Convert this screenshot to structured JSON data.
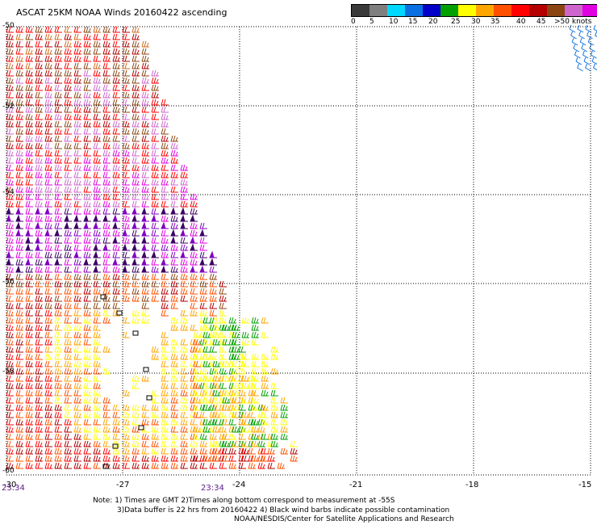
{
  "title": "ASCAT 25KM NOAA Winds 20160422 ascending",
  "legend": {
    "labels": [
      "0",
      "5",
      "10",
      "15",
      "20",
      "25",
      "30",
      "35",
      "40",
      "45",
      ">50 knots"
    ],
    "colors": [
      "#3a3a3a",
      "#7f7f7f",
      "#00d8ff",
      "#0a6fe0",
      "#0000c8",
      "#00a000",
      "#ffff00",
      "#ffa500",
      "#ff5000",
      "#ff0000",
      "#b40000",
      "#8b4513",
      "#cc66cc",
      "#e000e0",
      "#8000c0",
      "#3c0064"
    ]
  },
  "axes": {
    "lon_labels": [
      "-30",
      "-27",
      "-24",
      "-21",
      "-18",
      "-15"
    ],
    "lat_labels": [
      "-50",
      "-52",
      "-54",
      "-56",
      "-58",
      "-60"
    ]
  },
  "times": [
    "23:34",
    "23:34"
  ],
  "notes": {
    "line1": "Note: 1) Times are GMT 2)Times along bottom correspond to measurement at -55S",
    "line2": "3)Data buffer is 22 hrs from 20160422 4) Black wind barbs indicate possible contamination",
    "line3": "NOAA/NESDIS/Center for Satellite Applications and Research"
  }
}
